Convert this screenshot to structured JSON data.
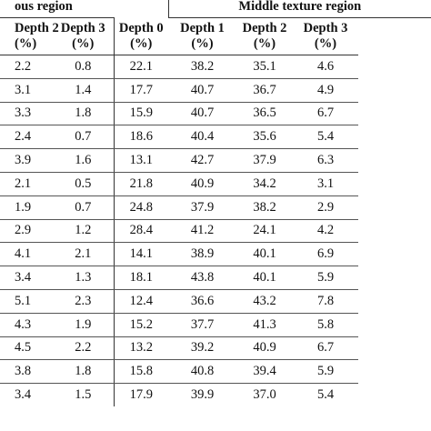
{
  "groups": {
    "left": "ous region",
    "right": "Middle texture region"
  },
  "columns": [
    {
      "name": "Depth 2",
      "unit": "(%)"
    },
    {
      "name": "Depth 3",
      "unit": "(%)"
    },
    {
      "name": "Depth 0",
      "unit": "(%)"
    },
    {
      "name": "Depth 1",
      "unit": "(%)"
    },
    {
      "name": "Depth 2",
      "unit": "(%)"
    },
    {
      "name": "Depth 3",
      "unit": "(%)"
    }
  ],
  "rows": [
    [
      "2.2",
      "0.8",
      "22.1",
      "38.2",
      "35.1",
      "4.6"
    ],
    [
      "3.1",
      "1.4",
      "17.7",
      "40.7",
      "36.7",
      "4.9"
    ],
    [
      "3.3",
      "1.8",
      "15.9",
      "40.7",
      "36.5",
      "6.7"
    ],
    [
      "2.4",
      "0.7",
      "18.6",
      "40.4",
      "35.6",
      "5.4"
    ],
    [
      "3.9",
      "1.6",
      "13.1",
      "42.7",
      "37.9",
      "6.3"
    ],
    [
      "2.1",
      "0.5",
      "21.8",
      "40.9",
      "34.2",
      "3.1"
    ],
    [
      "1.9",
      "0.7",
      "24.8",
      "37.9",
      "38.2",
      "2.9"
    ],
    [
      "2.9",
      "1.2",
      "28.4",
      "41.2",
      "24.1",
      "4.2"
    ],
    [
      "4.1",
      "2.1",
      "14.1",
      "38.9",
      "40.1",
      "6.9"
    ],
    [
      "3.4",
      "1.3",
      "18.1",
      "43.8",
      "40.1",
      "5.9"
    ],
    [
      "5.1",
      "2.3",
      "12.4",
      "36.6",
      "43.2",
      "7.8"
    ],
    [
      "4.3",
      "1.9",
      "15.2",
      "37.7",
      "41.3",
      "5.8"
    ],
    [
      "4.5",
      "2.2",
      "13.2",
      "39.2",
      "40.9",
      "6.7"
    ],
    [
      "3.8",
      "1.8",
      "15.8",
      "40.8",
      "39.4",
      "5.9"
    ],
    [
      "3.4",
      "1.5",
      "17.9",
      "39.9",
      "37.0",
      "5.4"
    ]
  ]
}
